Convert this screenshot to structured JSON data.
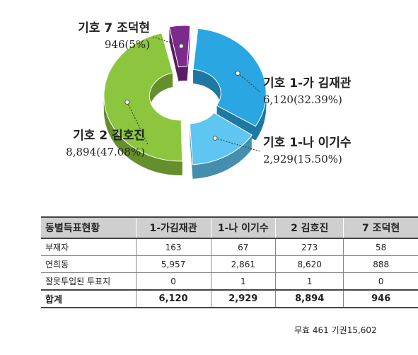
{
  "chart_data": {
    "type": "pie",
    "donut": true,
    "categories": [
      "기호 1-가 김재관",
      "기호 1-나 이기수",
      "기호 2 김호진",
      "기호 7 조덕현"
    ],
    "values": [
      6120,
      2929,
      8894,
      946
    ],
    "value_labels": [
      "6,120(32.39%)",
      "2,929(15.50%)",
      "8,894(47.08%)",
      "946(5%)"
    ],
    "colors": [
      "#2aa6e2",
      "#5ec6f0",
      "#8cc63f",
      "#7d2a8e"
    ]
  },
  "table": {
    "header": [
      "동별득표현황",
      "1-가김재관",
      "1-나 이기수",
      "2 김호진",
      "7 조덕현"
    ],
    "rows": [
      [
        "부재자",
        "163",
        "67",
        "273",
        "58"
      ],
      [
        "연희동",
        "5,957",
        "2,861",
        "8,620",
        "888"
      ],
      [
        "잘못투입된 투표지",
        "0",
        "1",
        "1",
        "0"
      ],
      [
        "합계",
        "6,120",
        "2,929",
        "8,894",
        "946"
      ]
    ]
  },
  "note": "무효 461   기권15,602"
}
